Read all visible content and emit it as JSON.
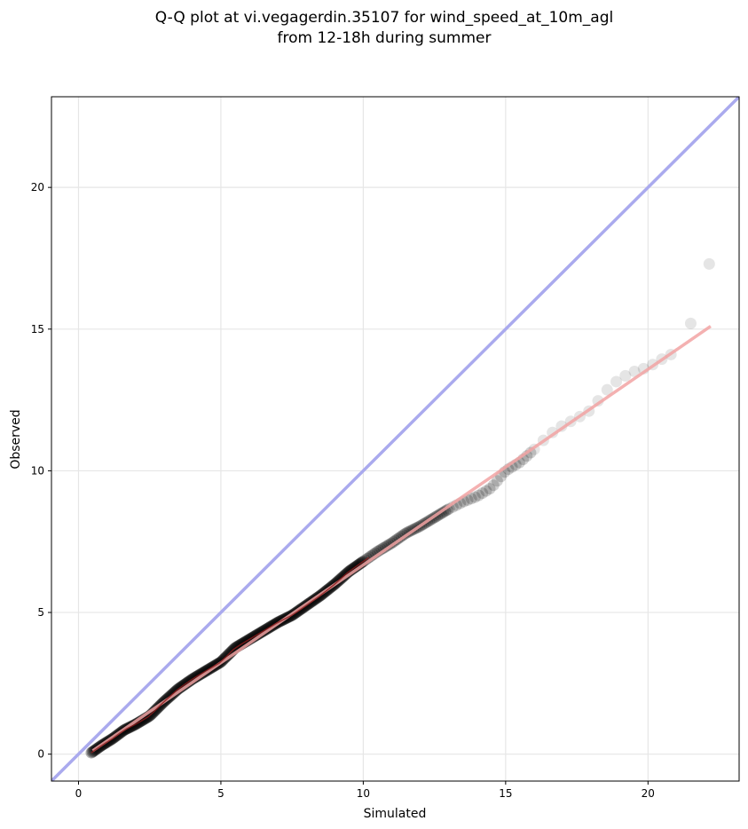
{
  "chart_data": {
    "type": "scatter",
    "title_line1": "Q-Q plot at vi.vegagerdin.35107 for wind_speed_at_10m_agl",
    "title_line2": "from 12-18h during summer",
    "xlabel": "Simulated",
    "ylabel": "Observed",
    "xlim": [
      -0.95,
      23.2
    ],
    "ylim": [
      -0.95,
      23.2
    ],
    "xticks": [
      0,
      5,
      10,
      15,
      20
    ],
    "yticks": [
      0,
      5,
      10,
      15,
      20
    ],
    "grid": true,
    "reference_line": {
      "label": "1:1",
      "color": "#aaaaee"
    },
    "fit_line": {
      "color": "#f2a3a3",
      "x": [
        0.5,
        22.2
      ],
      "y": [
        0.12,
        15.1
      ]
    },
    "quantile_curve": {
      "x": [
        0.45,
        0.8,
        1.2,
        1.6,
        2.0,
        2.5,
        3.0,
        3.5,
        4.0,
        4.5,
        5.0,
        5.5,
        6.0,
        6.5,
        7.0,
        7.5,
        8.0,
        8.5,
        9.0,
        9.5,
        10.0,
        10.5,
        11.0,
        11.5,
        12.0,
        12.5,
        13.0,
        13.5,
        14.0,
        14.5,
        15.0,
        15.5,
        16.0,
        16.5,
        17.0,
        17.5,
        18.0,
        18.5,
        19.0,
        19.5,
        20.0,
        20.5,
        21.0
      ],
      "y": [
        0.05,
        0.3,
        0.55,
        0.85,
        1.05,
        1.35,
        1.85,
        2.3,
        2.65,
        2.95,
        3.25,
        3.75,
        4.05,
        4.35,
        4.65,
        4.9,
        5.25,
        5.6,
        6.0,
        6.45,
        6.8,
        7.15,
        7.45,
        7.8,
        8.05,
        8.35,
        8.65,
        8.9,
        9.1,
        9.4,
        10.0,
        10.3,
        10.75,
        11.25,
        11.6,
        11.85,
        12.15,
        12.8,
        13.25,
        13.5,
        13.65,
        13.95,
        14.2
      ]
    },
    "tail_points": [
      {
        "x": 21.5,
        "y": 15.2
      },
      {
        "x": 22.15,
        "y": 17.3
      }
    ],
    "point_color": "#000000"
  }
}
